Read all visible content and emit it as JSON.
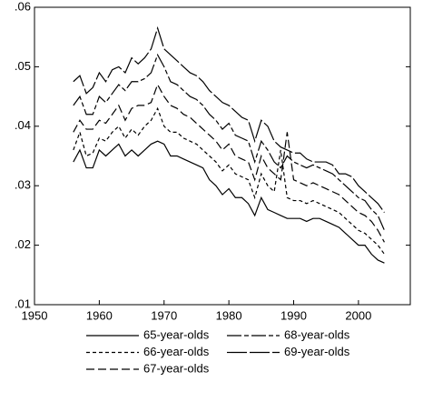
{
  "chart_data": {
    "type": "line",
    "x": [
      1956,
      1957,
      1958,
      1959,
      1960,
      1961,
      1962,
      1963,
      1964,
      1965,
      1966,
      1967,
      1968,
      1969,
      1970,
      1971,
      1972,
      1973,
      1974,
      1975,
      1976,
      1977,
      1978,
      1979,
      1980,
      1981,
      1982,
      1983,
      1984,
      1985,
      1986,
      1987,
      1988,
      1989,
      1990,
      1991,
      1992,
      1993,
      1994,
      1995,
      1996,
      1997,
      1998,
      1999,
      2000,
      2001,
      2002,
      2003,
      2004
    ],
    "xlim": [
      1950,
      2008
    ],
    "xticks": [
      1950,
      1960,
      1970,
      1980,
      1990,
      2000
    ],
    "ylim": [
      0.01,
      0.06
    ],
    "yticks": [
      {
        "value": 0.01,
        "label": ".01"
      },
      {
        "value": 0.02,
        "label": ".02"
      },
      {
        "value": 0.03,
        "label": ".03"
      },
      {
        "value": 0.04,
        "label": ".04"
      },
      {
        "value": 0.05,
        "label": ".05"
      },
      {
        "value": 0.06,
        "label": ".06"
      }
    ],
    "series": [
      {
        "name": "65-year-olds",
        "color": "#000000",
        "dash": "none",
        "values": [
          0.034,
          0.036,
          0.033,
          0.033,
          0.036,
          0.035,
          0.036,
          0.037,
          0.035,
          0.036,
          0.035,
          0.036,
          0.037,
          0.0375,
          0.037,
          0.035,
          0.035,
          0.0345,
          0.034,
          0.0335,
          0.033,
          0.031,
          0.03,
          0.0285,
          0.0295,
          0.028,
          0.028,
          0.027,
          0.025,
          0.028,
          0.026,
          0.0255,
          0.025,
          0.0245,
          0.0245,
          0.0245,
          0.024,
          0.0245,
          0.0245,
          0.024,
          0.0235,
          0.023,
          0.022,
          0.021,
          0.02,
          0.02,
          0.0185,
          0.0175,
          0.017
        ]
      },
      {
        "name": "66-year-olds",
        "color": "#000000",
        "dash": "4 3",
        "values": [
          0.036,
          0.039,
          0.035,
          0.0355,
          0.038,
          0.0375,
          0.039,
          0.04,
          0.038,
          0.0395,
          0.0385,
          0.04,
          0.041,
          0.043,
          0.04,
          0.039,
          0.039,
          0.038,
          0.0375,
          0.037,
          0.036,
          0.035,
          0.034,
          0.0325,
          0.0335,
          0.032,
          0.0315,
          0.031,
          0.028,
          0.032,
          0.03,
          0.029,
          0.036,
          0.028,
          0.0275,
          0.0275,
          0.027,
          0.0275,
          0.027,
          0.0265,
          0.026,
          0.0255,
          0.0245,
          0.0235,
          0.0225,
          0.022,
          0.021,
          0.02,
          0.0185
        ]
      },
      {
        "name": "67-year-olds",
        "color": "#000000",
        "dash": "9 4",
        "values": [
          0.039,
          0.041,
          0.0395,
          0.0395,
          0.041,
          0.0405,
          0.042,
          0.0435,
          0.041,
          0.043,
          0.0435,
          0.0435,
          0.044,
          0.047,
          0.045,
          0.0435,
          0.043,
          0.042,
          0.0415,
          0.0405,
          0.0395,
          0.0385,
          0.0375,
          0.036,
          0.037,
          0.035,
          0.0345,
          0.034,
          0.031,
          0.035,
          0.033,
          0.032,
          0.031,
          0.039,
          0.031,
          0.0305,
          0.03,
          0.0305,
          0.03,
          0.0295,
          0.029,
          0.0285,
          0.0275,
          0.0265,
          0.0255,
          0.025,
          0.024,
          0.0225,
          0.0205
        ]
      },
      {
        "name": "68-year-olds",
        "color": "#000000",
        "dash": "16 3 5 3",
        "values": [
          0.0435,
          0.045,
          0.042,
          0.042,
          0.045,
          0.044,
          0.0455,
          0.047,
          0.046,
          0.0475,
          0.0475,
          0.048,
          0.049,
          0.052,
          0.05,
          0.0475,
          0.047,
          0.046,
          0.045,
          0.0445,
          0.0435,
          0.042,
          0.041,
          0.0395,
          0.0405,
          0.0385,
          0.038,
          0.0375,
          0.034,
          0.0375,
          0.036,
          0.034,
          0.033,
          0.035,
          0.034,
          0.0335,
          0.033,
          0.0335,
          0.033,
          0.0325,
          0.032,
          0.031,
          0.03,
          0.029,
          0.028,
          0.0275,
          0.026,
          0.025,
          0.0225
        ]
      },
      {
        "name": "69-year-olds",
        "color": "#000000",
        "dash": "22 3",
        "values": [
          0.0475,
          0.0485,
          0.0455,
          0.0465,
          0.049,
          0.0475,
          0.0495,
          0.05,
          0.049,
          0.0515,
          0.0505,
          0.0515,
          0.053,
          0.0565,
          0.053,
          0.052,
          0.051,
          0.05,
          0.049,
          0.0485,
          0.0475,
          0.046,
          0.045,
          0.044,
          0.0435,
          0.0425,
          0.0415,
          0.041,
          0.0375,
          0.041,
          0.04,
          0.0375,
          0.0365,
          0.036,
          0.0355,
          0.0355,
          0.0345,
          0.034,
          0.034,
          0.034,
          0.0335,
          0.032,
          0.032,
          0.0315,
          0.03,
          0.029,
          0.028,
          0.027,
          0.0255
        ]
      }
    ]
  }
}
